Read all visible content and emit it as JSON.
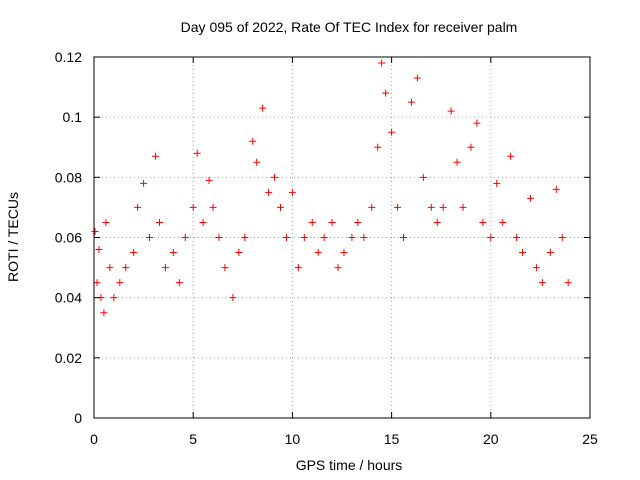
{
  "chart_data": {
    "type": "scatter",
    "title": "Day 095 of 2022, Rate Of TEC Index for receiver palm",
    "xlabel": "GPS time / hours",
    "ylabel": "ROTI / TECUs",
    "xlim": [
      0,
      25
    ],
    "ylim": [
      0,
      0.12
    ],
    "xticks": [
      0,
      5,
      10,
      15,
      20,
      25
    ],
    "xtick_labels": [
      "0",
      "5",
      "10",
      "15",
      "20",
      "25"
    ],
    "yticks": [
      0,
      0.02,
      0.04,
      0.06,
      0.08,
      0.1,
      0.12
    ],
    "ytick_labels": [
      "0",
      "0.02",
      "0.04",
      "0.06",
      "0.08",
      "0.1",
      "0.12"
    ],
    "grid": true,
    "marker": "+",
    "color": "#ff0000",
    "series": [
      {
        "x": [
          0.05,
          0.15,
          0.25,
          0.35,
          0.5,
          0.6,
          0.8,
          1.0,
          1.3,
          1.6,
          2.0,
          2.2,
          2.5,
          2.8,
          3.1,
          3.3,
          3.6,
          4.0,
          4.3,
          4.6,
          5.0,
          5.2,
          5.5,
          5.8,
          6.0,
          6.3,
          6.6,
          7.0,
          7.3,
          7.6,
          8.0,
          8.2,
          8.5,
          8.8,
          9.1,
          9.4,
          9.7,
          10.0,
          10.3,
          10.6,
          11.0,
          11.3,
          11.6,
          12.0,
          12.3,
          12.6,
          13.0,
          13.3,
          13.6,
          14.0,
          14.3,
          14.5,
          14.7,
          15.0,
          15.3,
          15.6,
          16.0,
          16.3,
          16.6,
          17.0,
          17.3,
          17.6,
          18.0,
          18.3,
          18.6,
          19.0,
          19.3,
          19.6,
          20.0,
          20.3,
          20.6,
          21.0,
          21.3,
          21.6,
          22.0,
          22.3,
          22.6,
          23.0,
          23.3,
          23.6,
          23.9
        ],
        "y": [
          0.062,
          0.045,
          0.056,
          0.04,
          0.035,
          0.065,
          0.05,
          0.04,
          0.045,
          0.05,
          0.055,
          0.07,
          0.078,
          0.06,
          0.087,
          0.065,
          0.05,
          0.055,
          0.045,
          0.06,
          0.07,
          0.088,
          0.065,
          0.079,
          0.07,
          0.06,
          0.05,
          0.04,
          0.055,
          0.06,
          0.092,
          0.085,
          0.103,
          0.075,
          0.08,
          0.07,
          0.06,
          0.075,
          0.05,
          0.06,
          0.065,
          0.055,
          0.06,
          0.065,
          0.05,
          0.055,
          0.06,
          0.065,
          0.06,
          0.07,
          0.09,
          0.118,
          0.108,
          0.095,
          0.07,
          0.06,
          0.105,
          0.113,
          0.08,
          0.07,
          0.065,
          0.07,
          0.102,
          0.085,
          0.07,
          0.09,
          0.098,
          0.065,
          0.06,
          0.078,
          0.065,
          0.087,
          0.06,
          0.055,
          0.073,
          0.05,
          0.045,
          0.055,
          0.076,
          0.06,
          0.045
        ]
      }
    ]
  }
}
